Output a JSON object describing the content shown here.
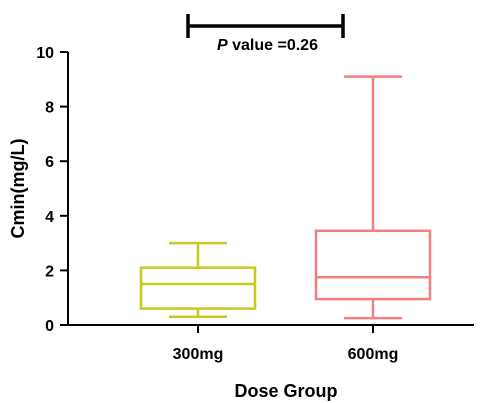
{
  "chart_data": {
    "type": "box",
    "title": "",
    "xlabel": "Dose Group",
    "ylabel": "Cmin(mg/L)",
    "ylim": [
      0,
      10
    ],
    "y_ticks": [
      0,
      2,
      4,
      6,
      8,
      10
    ],
    "grid": false,
    "legend": "none",
    "categories": [
      "300mg",
      "600mg"
    ],
    "series": [
      {
        "category": "300mg",
        "color": "#c8c81e",
        "min": 0.3,
        "q1": 0.6,
        "median": 1.5,
        "q3": 2.1,
        "max": 3.0
      },
      {
        "category": "600mg",
        "color": "#f08080",
        "min": 0.25,
        "q1": 0.95,
        "median": 1.75,
        "q3": 3.45,
        "max": 9.1
      }
    ],
    "annotation": {
      "p_label_italic": "P",
      "p_label_text": " value =0.26"
    }
  }
}
